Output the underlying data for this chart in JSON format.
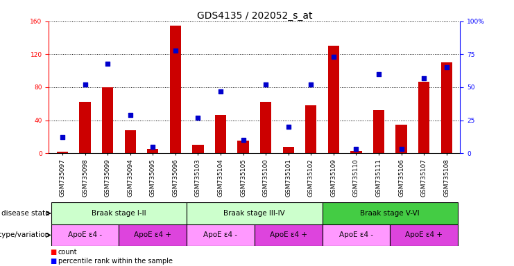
{
  "title": "GDS4135 / 202052_s_at",
  "samples": [
    "GSM735097",
    "GSM735098",
    "GSM735099",
    "GSM735094",
    "GSM735095",
    "GSM735096",
    "GSM735103",
    "GSM735104",
    "GSM735105",
    "GSM735100",
    "GSM735101",
    "GSM735102",
    "GSM735109",
    "GSM735110",
    "GSM735111",
    "GSM735106",
    "GSM735107",
    "GSM735108"
  ],
  "counts": [
    2,
    62,
    80,
    28,
    5,
    155,
    10,
    46,
    15,
    62,
    8,
    58,
    130,
    3,
    52,
    35,
    87,
    110
  ],
  "percentiles": [
    12,
    52,
    68,
    29,
    5,
    78,
    27,
    47,
    10,
    52,
    20,
    52,
    73,
    3,
    60,
    3,
    57,
    65
  ],
  "ylim_left": [
    0,
    160
  ],
  "ylim_right": [
    0,
    100
  ],
  "yticks_left": [
    0,
    40,
    80,
    120,
    160
  ],
  "yticks_right": [
    0,
    25,
    50,
    75,
    100
  ],
  "bar_color": "#cc0000",
  "dot_color": "#0000cc",
  "bg_color": "#ffffff",
  "disease_state_groups": [
    {
      "label": "Braak stage I-II",
      "start": 0,
      "end": 6,
      "color": "#ccffcc"
    },
    {
      "label": "Braak stage III-IV",
      "start": 6,
      "end": 12,
      "color": "#ccffcc"
    },
    {
      "label": "Braak stage V-VI",
      "start": 12,
      "end": 18,
      "color": "#44cc44"
    }
  ],
  "genotype_groups": [
    {
      "label": "ApoE ε4 -",
      "start": 0,
      "end": 3,
      "color": "#ff99ff"
    },
    {
      "label": "ApoE ε4 +",
      "start": 3,
      "end": 6,
      "color": "#dd44dd"
    },
    {
      "label": "ApoE ε4 -",
      "start": 6,
      "end": 9,
      "color": "#ff99ff"
    },
    {
      "label": "ApoE ε4 +",
      "start": 9,
      "end": 12,
      "color": "#dd44dd"
    },
    {
      "label": "ApoE ε4 -",
      "start": 12,
      "end": 15,
      "color": "#ff99ff"
    },
    {
      "label": "ApoE ε4 +",
      "start": 15,
      "end": 18,
      "color": "#dd44dd"
    }
  ],
  "left_label": "disease state",
  "right_label": "genotype/variation",
  "legend_count": "count",
  "legend_percentile": "percentile rank within the sample",
  "title_fontsize": 10,
  "tick_fontsize": 6.5,
  "bar_width": 0.5
}
